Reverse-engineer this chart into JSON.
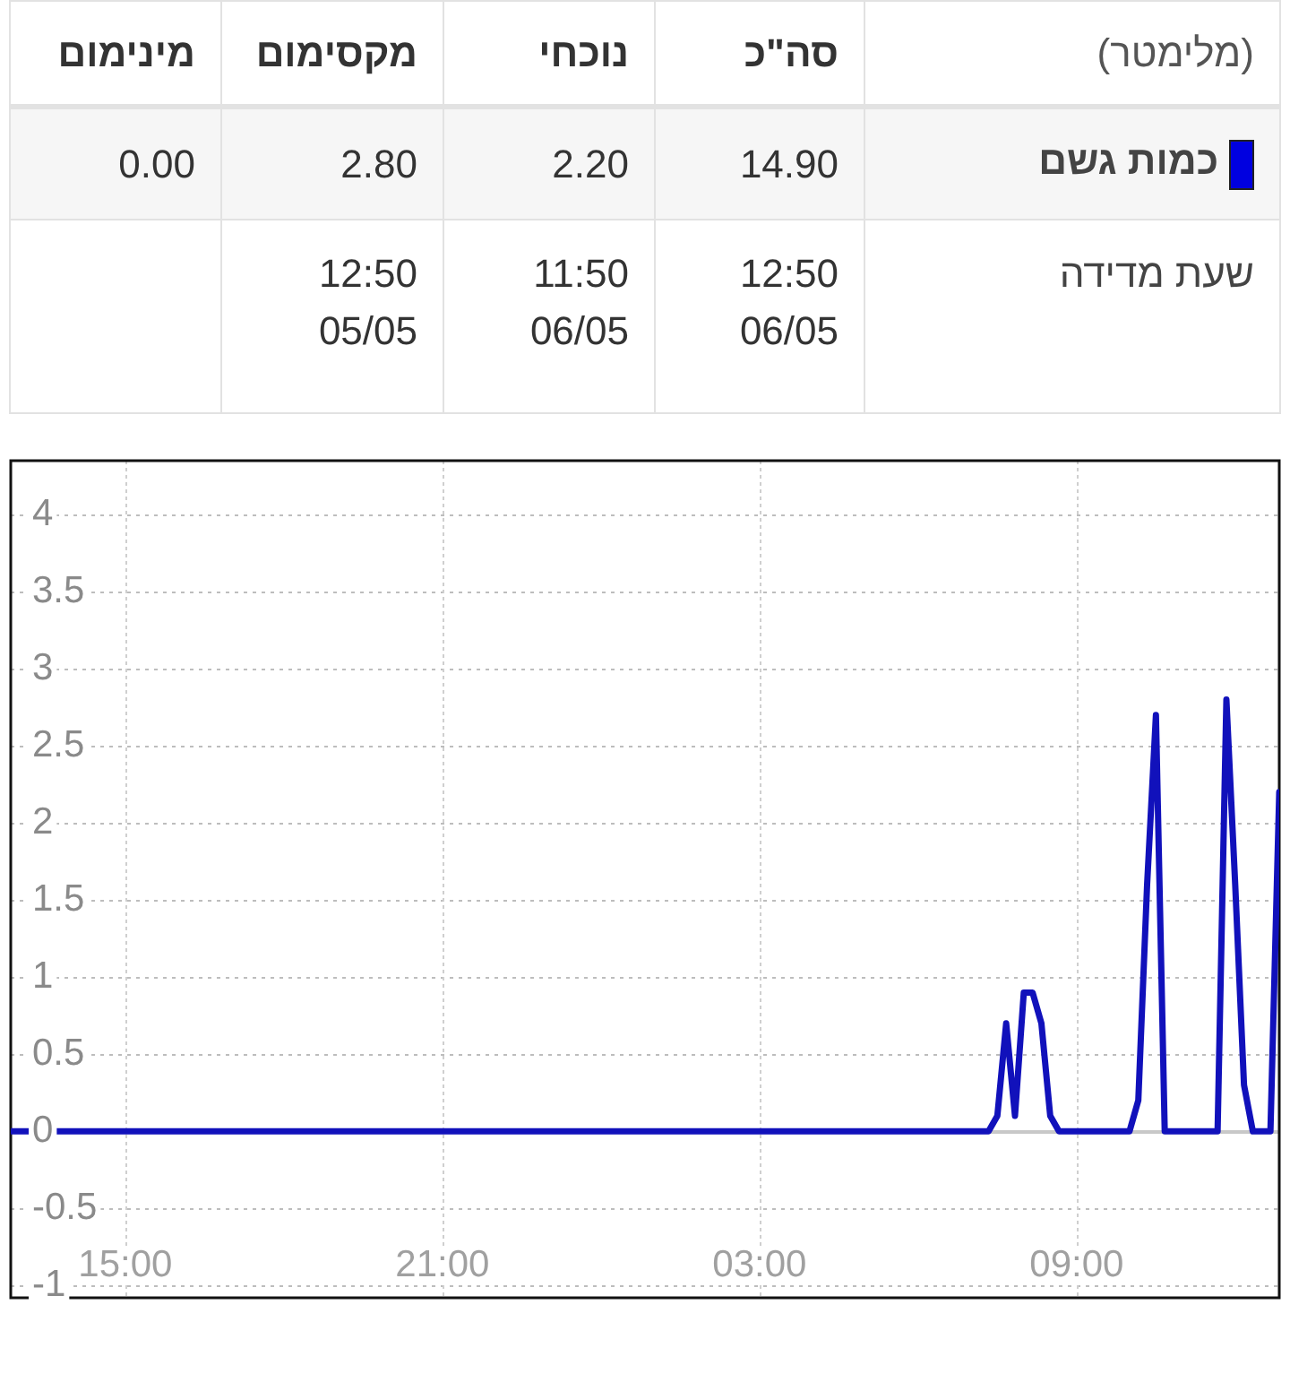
{
  "chart_data": [
    {
      "type": "other",
      "categories": [
        "מינימום",
        "מקסימום",
        "נוכחי",
        "סה\"כ"
      ],
      "y2label": "(מלימטר)",
      "y2_categories": [
        "כמות גשם",
        "שעת מדידה"
      ],
      "colors": [
        "#0000e0",
        null
      ],
      "cell_labels": [
        [
          "0.00",
          "2.80",
          "2.20",
          "14.90"
        ],
        [
          null,
          "12:50 05/05",
          "11:50 06/05",
          "12:50 06/05"
        ]
      ]
    },
    {
      "type": "line",
      "x": [
        "--05-05T12:50",
        "--05-06T07:20",
        "--05-06T07:30",
        "--05-06T07:40",
        "--05-06T07:50",
        "--05-06T08:00",
        "--05-06T08:10",
        "--05-06T08:20",
        "--05-06T08:30",
        "--05-06T08:40",
        "--05-06T10:00",
        "--05-06T10:10",
        "--05-06T10:20",
        "--05-06T10:30",
        "--05-06T10:40",
        "--05-06T11:40",
        "--05-06T11:50",
        "--05-06T12:00",
        "--05-06T12:10",
        "--05-06T12:20",
        "--05-06T12:40",
        "--05-06T12:50"
      ],
      "values": [
        0,
        0,
        0.1,
        0.7,
        0.1,
        0.9,
        0.9,
        0.7,
        0.1,
        0,
        0,
        0.2,
        1.6,
        2.7,
        0,
        0,
        2.8,
        1.6,
        0.3,
        0,
        0,
        2.2
      ],
      "color": "#1111bb",
      "xlim": [
        "--05-05T12:50",
        "--05-06T12:50"
      ],
      "ylim": [
        -1.08,
        4.35
      ],
      "xticks": [
        {
          "value": "--05-05T15:00",
          "label": "15:00"
        },
        {
          "value": "--05-05T21:00",
          "label": "21:00"
        },
        {
          "value": "--05-06T03:00",
          "label": "03:00"
        },
        {
          "value": "--05-06T09:00",
          "label": "09:00"
        }
      ],
      "yticks": [
        -1,
        -0.5,
        0,
        0.5,
        1,
        1.5,
        2,
        2.5,
        3,
        3.5,
        4
      ],
      "grid": true
    }
  ]
}
